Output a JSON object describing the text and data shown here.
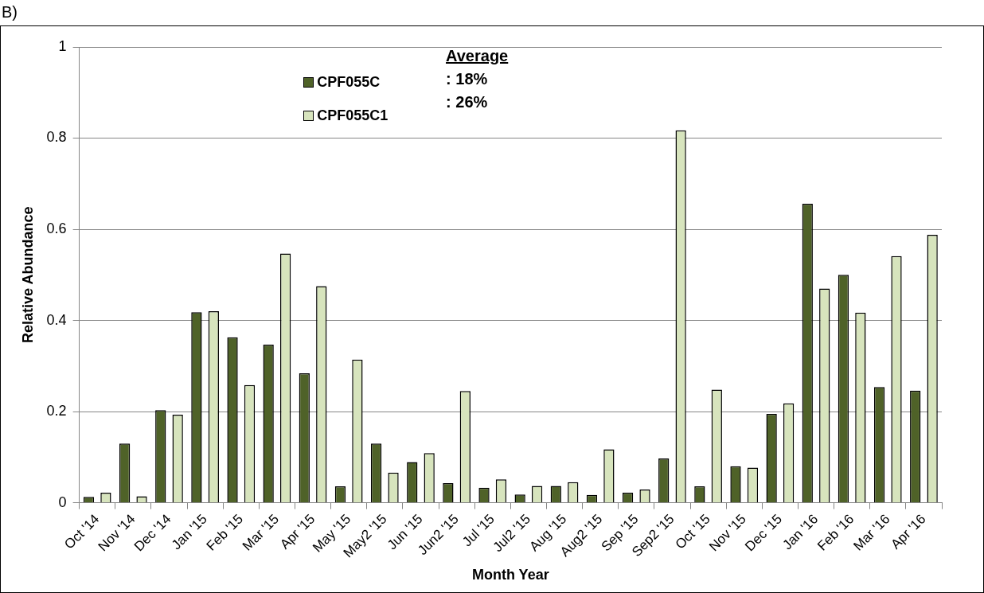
{
  "chart_data": {
    "type": "bar",
    "title": "B)",
    "xlabel": "Month Year",
    "ylabel": "Relative Abundance",
    "categories": [
      "Oct '14",
      "Nov '14",
      "Dec '14",
      "Jan '15",
      "Feb '15",
      "Mar '15",
      "Apr '15",
      "May '15",
      "May2 '15",
      "Jun '15",
      "Jun2 '15",
      "Jul '15",
      "Jul2 '15",
      "Aug '15",
      "Aug2 '15",
      "Sep '15",
      "Sep2 '15",
      "Oct '15",
      "Nov '15",
      "Dec '15",
      "Jan '16",
      "Feb '16",
      "Mar '16",
      "Apr '16"
    ],
    "series": [
      {
        "name": "CPF055C",
        "color": "#4f6228",
        "values": [
          0.013,
          0.13,
          0.203,
          0.418,
          0.363,
          0.347,
          0.284,
          0.036,
          0.13,
          0.089,
          0.043,
          0.033,
          0.018,
          0.037,
          0.017,
          0.022,
          0.097,
          0.036,
          0.08,
          0.195,
          0.656,
          0.5,
          0.254,
          0.246
        ]
      },
      {
        "name": "CPF055C1",
        "color": "#d7e4bd",
        "values": [
          0.022,
          0.014,
          0.193,
          0.42,
          0.258,
          0.547,
          0.475,
          0.314,
          0.066,
          0.109,
          0.245,
          0.051,
          0.037,
          0.045,
          0.117,
          0.029,
          0.817,
          0.248,
          0.077,
          0.218,
          0.47,
          0.417,
          0.541,
          0.588
        ]
      }
    ],
    "ylim": [
      0,
      1
    ],
    "yticks": [
      0,
      0.2,
      0.4,
      0.6,
      0.8,
      1
    ],
    "grid": "y",
    "legend": "top",
    "annotations": [
      "Average",
      ": 18%",
      ": 26%"
    ]
  }
}
